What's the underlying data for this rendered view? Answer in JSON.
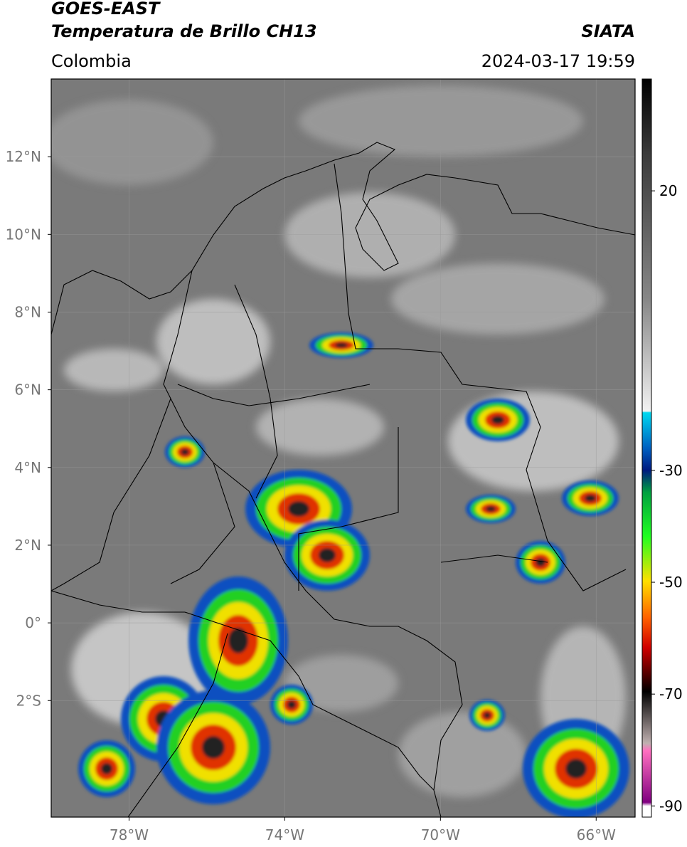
{
  "header": {
    "title": "GOES-EAST",
    "subtitle": "Temperatura de Brillo CH13",
    "region": "Colombia",
    "source": "SIATA",
    "datetime": "2024-03-17 19:59"
  },
  "map": {
    "xlim": [
      -80,
      -65
    ],
    "ylim": [
      -5,
      14
    ],
    "xticks": [
      {
        "value": -78,
        "label": "78°W"
      },
      {
        "value": -74,
        "label": "74°W"
      },
      {
        "value": -70,
        "label": "70°W"
      },
      {
        "value": -66,
        "label": "66°W"
      }
    ],
    "yticks": [
      {
        "value": 12,
        "label": "12°N"
      },
      {
        "value": 10,
        "label": "10°N"
      },
      {
        "value": 8,
        "label": "8°N"
      },
      {
        "value": 6,
        "label": "6°N"
      },
      {
        "value": 4,
        "label": "4°N"
      },
      {
        "value": 2,
        "label": "2°N"
      },
      {
        "value": 0,
        "label": "0°"
      },
      {
        "value": -2,
        "label": "2°S"
      }
    ]
  },
  "colorbar": {
    "lim": [
      -92,
      40
    ],
    "ticks": [
      20,
      -30,
      -50,
      -70,
      -90
    ]
  }
}
